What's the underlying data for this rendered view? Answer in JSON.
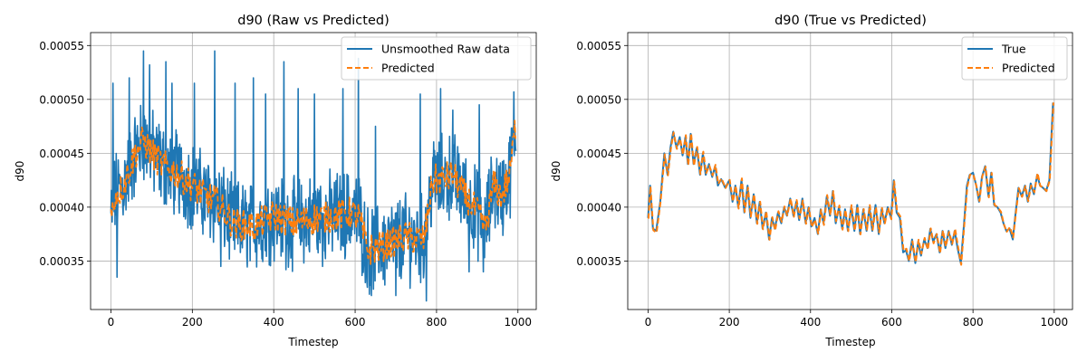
{
  "chart_data": [
    {
      "type": "line",
      "title": "d90 (Raw vs Predicted)",
      "xlabel": "Timestep",
      "ylabel": "d90",
      "xlim": [
        -50,
        1045
      ],
      "ylim": [
        0.000305,
        0.000562
      ],
      "xticks": [
        0,
        200,
        400,
        600,
        800,
        1000
      ],
      "yticks": [
        0.00035,
        0.0004,
        0.00045,
        0.0005,
        0.00055
      ],
      "ytick_labels": [
        "0.00035",
        "0.00040",
        "0.00045",
        "0.00050",
        "0.00055"
      ],
      "grid": true,
      "legend_position": "top-right",
      "series": [
        {
          "name": "Unsmoothed Raw data",
          "color": "#1f77b4",
          "style": "solid",
          "kind": "raw",
          "x": [
            0,
            1000
          ],
          "trend": [
            [
              0,
              0.00039
            ],
            [
              10,
              0.00041
            ],
            [
              30,
              0.00042
            ],
            [
              60,
              0.00045
            ],
            [
              80,
              0.000462
            ],
            [
              100,
              0.00045
            ],
            [
              130,
              0.000438
            ],
            [
              160,
              0.000432
            ],
            [
              200,
              0.00042
            ],
            [
              230,
              0.00041
            ],
            [
              260,
              0.000405
            ],
            [
              300,
              0.000385
            ],
            [
              350,
              0.000382
            ],
            [
              400,
              0.000392
            ],
            [
              450,
              0.000385
            ],
            [
              500,
              0.00039
            ],
            [
              550,
              0.000392
            ],
            [
              590,
              0.000395
            ],
            [
              610,
              0.00039
            ],
            [
              630,
              0.00036
            ],
            [
              680,
              0.000365
            ],
            [
              720,
              0.000372
            ],
            [
              770,
              0.00037
            ],
            [
              790,
              0.000425
            ],
            [
              810,
              0.000425
            ],
            [
              840,
              0.00043
            ],
            [
              870,
              0.00041
            ],
            [
              900,
              0.000395
            ],
            [
              920,
              0.00038
            ],
            [
              940,
              0.00042
            ],
            [
              960,
              0.00041
            ],
            [
              980,
              0.00043
            ],
            [
              995,
              0.00048
            ]
          ],
          "spikes": [
            [
              5,
              0.000515
            ],
            [
              15,
              0.000335
            ],
            [
              45,
              0.00052
            ],
            [
              80,
              0.000545
            ],
            [
              95,
              0.000532
            ],
            [
              135,
              0.000535
            ],
            [
              150,
              0.000515
            ],
            [
              205,
              0.000515
            ],
            [
              255,
              0.000545
            ],
            [
              305,
              0.000515
            ],
            [
              350,
              0.00052
            ],
            [
              380,
              0.000505
            ],
            [
              425,
              0.000535
            ],
            [
              460,
              0.00051
            ],
            [
              500,
              0.000505
            ],
            [
              570,
              0.00051
            ],
            [
              608,
              0.000538
            ],
            [
              650,
              0.000475
            ],
            [
              760,
              0.000505
            ],
            [
              810,
              0.00051
            ],
            [
              840,
              0.00049
            ],
            [
              905,
              0.000495
            ],
            [
              990,
              0.000507
            ],
            [
              270,
              0.000345
            ],
            [
              430,
              0.000342
            ],
            [
              640,
              0.000318
            ],
            [
              700,
              0.000318
            ],
            [
              775,
              0.000313
            ],
            [
              915,
              0.00034
            ],
            [
              520,
              0.000345
            ],
            [
              880,
              0.00034
            ]
          ]
        },
        {
          "name": "Predicted",
          "color": "#ff7f0e",
          "style": "dashed",
          "kind": "smooth"
        }
      ]
    },
    {
      "type": "line",
      "title": "d90 (True vs Predicted)",
      "xlabel": "Timestep",
      "ylabel": "d90",
      "xlim": [
        -50,
        1045
      ],
      "ylim": [
        0.000305,
        0.000562
      ],
      "xticks": [
        0,
        200,
        400,
        600,
        800,
        1000
      ],
      "yticks": [
        0.00035,
        0.0004,
        0.00045,
        0.0005,
        0.00055
      ],
      "ytick_labels": [
        "0.00035",
        "0.00040",
        "0.00045",
        "0.00050",
        "0.00055"
      ],
      "grid": true,
      "legend_position": "top-right",
      "series": [
        {
          "name": "True",
          "color": "#1f77b4",
          "style": "solid",
          "kind": "smooth",
          "points": [
            [
              0,
              0.00039
            ],
            [
              5,
              0.00042
            ],
            [
              12,
              0.00038
            ],
            [
              20,
              0.000378
            ],
            [
              30,
              0.000405
            ],
            [
              40,
              0.00045
            ],
            [
              48,
              0.00043
            ],
            [
              55,
              0.000455
            ],
            [
              62,
              0.00047
            ],
            [
              70,
              0.000455
            ],
            [
              78,
              0.000465
            ],
            [
              85,
              0.000448
            ],
            [
              92,
              0.000465
            ],
            [
              98,
              0.00044
            ],
            [
              105,
              0.000468
            ],
            [
              112,
              0.00044
            ],
            [
              120,
              0.000455
            ],
            [
              128,
              0.00043
            ],
            [
              135,
              0.00045
            ],
            [
              142,
              0.00043
            ],
            [
              150,
              0.00044
            ],
            [
              158,
              0.000428
            ],
            [
              165,
              0.000438
            ],
            [
              172,
              0.00042
            ],
            [
              180,
              0.000426
            ],
            [
              190,
              0.000418
            ],
            [
              200,
              0.000425
            ],
            [
              208,
              0.000405
            ],
            [
              215,
              0.00042
            ],
            [
              222,
              0.0004
            ],
            [
              230,
              0.000425
            ],
            [
              237,
              0.000395
            ],
            [
              245,
              0.00042
            ],
            [
              252,
              0.00039
            ],
            [
              260,
              0.000412
            ],
            [
              268,
              0.000385
            ],
            [
              275,
              0.000405
            ],
            [
              282,
              0.00038
            ],
            [
              290,
              0.000395
            ],
            [
              298,
              0.00037
            ],
            [
              305,
              0.00039
            ],
            [
              312,
              0.00038
            ],
            [
              320,
              0.000395
            ],
            [
              328,
              0.000385
            ],
            [
              335,
              0.0004
            ],
            [
              342,
              0.000392
            ],
            [
              350,
              0.000408
            ],
            [
              358,
              0.000392
            ],
            [
              365,
              0.000405
            ],
            [
              372,
              0.000388
            ],
            [
              380,
              0.000408
            ],
            [
              388,
              0.000385
            ],
            [
              395,
              0.0004
            ],
            [
              402,
              0.000382
            ],
            [
              410,
              0.00039
            ],
            [
              418,
              0.000375
            ],
            [
              425,
              0.000398
            ],
            [
              432,
              0.000385
            ],
            [
              440,
              0.00041
            ],
            [
              448,
              0.000392
            ],
            [
              455,
              0.000415
            ],
            [
              462,
              0.000385
            ],
            [
              470,
              0.0004
            ],
            [
              478,
              0.00038
            ],
            [
              485,
              0.000398
            ],
            [
              492,
              0.000378
            ],
            [
              500,
              0.0004
            ],
            [
              508,
              0.000378
            ],
            [
              515,
              0.000402
            ],
            [
              522,
              0.000375
            ],
            [
              530,
              0.000398
            ],
            [
              538,
              0.000378
            ],
            [
              545,
              0.0004
            ],
            [
              552,
              0.000378
            ],
            [
              560,
              0.000402
            ],
            [
              568,
              0.000375
            ],
            [
              575,
              0.000398
            ],
            [
              582,
              0.000385
            ],
            [
              590,
              0.0004
            ],
            [
              598,
              0.00039
            ],
            [
              605,
              0.000425
            ],
            [
              612,
              0.000395
            ],
            [
              620,
              0.00039
            ],
            [
              628,
              0.000358
            ],
            [
              635,
              0.00036
            ],
            [
              642,
              0.00035
            ],
            [
              650,
              0.00037
            ],
            [
              658,
              0.000348
            ],
            [
              665,
              0.000368
            ],
            [
              672,
              0.000355
            ],
            [
              680,
              0.00037
            ],
            [
              688,
              0.000362
            ],
            [
              695,
              0.00038
            ],
            [
              702,
              0.000368
            ],
            [
              710,
              0.000375
            ],
            [
              718,
              0.000358
            ],
            [
              725,
              0.000378
            ],
            [
              732,
              0.000362
            ],
            [
              740,
              0.000378
            ],
            [
              748,
              0.000365
            ],
            [
              755,
              0.000378
            ],
            [
              762,
              0.000362
            ],
            [
              770,
              0.000348
            ],
            [
              778,
              0.000385
            ],
            [
              785,
              0.00042
            ],
            [
              792,
              0.00043
            ],
            [
              800,
              0.000432
            ],
            [
              808,
              0.00042
            ],
            [
              815,
              0.000405
            ],
            [
              822,
              0.000428
            ],
            [
              830,
              0.000438
            ],
            [
              838,
              0.00041
            ],
            [
              845,
              0.000432
            ],
            [
              852,
              0.000402
            ],
            [
              860,
              0.0004
            ],
            [
              868,
              0.000395
            ],
            [
              875,
              0.000385
            ],
            [
              882,
              0.000378
            ],
            [
              890,
              0.00038
            ],
            [
              898,
              0.00037
            ],
            [
              905,
              0.000395
            ],
            [
              912,
              0.000418
            ],
            [
              920,
              0.00041
            ],
            [
              928,
              0.00042
            ],
            [
              935,
              0.000405
            ],
            [
              942,
              0.000422
            ],
            [
              950,
              0.000412
            ],
            [
              958,
              0.00043
            ],
            [
              965,
              0.00042
            ],
            [
              972,
              0.000418
            ],
            [
              980,
              0.000415
            ],
            [
              988,
              0.000425
            ],
            [
              993,
              0.000465
            ],
            [
              997,
              0.000497
            ]
          ]
        },
        {
          "name": "Predicted",
          "color": "#ff7f0e",
          "style": "dashed",
          "kind": "smooth"
        }
      ]
    }
  ]
}
